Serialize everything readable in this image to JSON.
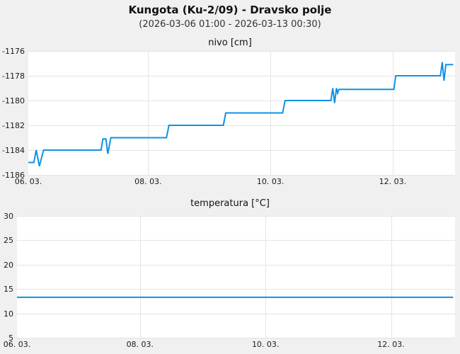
{
  "header": {
    "title": "Kungota (Ku-2/09) - Dravsko polje",
    "subtitle": "(2026-03-06 01:00 - 2026-03-13 00:30)"
  },
  "colors": {
    "page_bg": "#f0f0f0",
    "plot_bg": "#ffffff",
    "grid": "#e4e4e4",
    "line": "#1191e5",
    "tick_text": "#1a1a1a"
  },
  "chart_data": [
    {
      "type": "line",
      "title": "nivo [cm]",
      "xlabel": "",
      "ylabel": "nivo [cm]",
      "x_unit_note": "days since 2026-03-06 00:00",
      "xlim": [
        0.04,
        7.02
      ],
      "ylim": [
        -1186,
        -1176
      ],
      "grid": true,
      "legend": "none",
      "yticks": [
        {
          "v": -1176,
          "label": "-1176"
        },
        {
          "v": -1178,
          "label": "-1178"
        },
        {
          "v": -1180,
          "label": "-1180"
        },
        {
          "v": -1182,
          "label": "-1182"
        },
        {
          "v": -1184,
          "label": "-1184"
        },
        {
          "v": -1186,
          "label": "-1186"
        }
      ],
      "xticks": [
        {
          "t": 0,
          "label": "06. 03."
        },
        {
          "t": 2,
          "label": "08. 03."
        },
        {
          "t": 4,
          "label": "10. 03."
        },
        {
          "t": 6,
          "label": "12. 03."
        }
      ],
      "series": [
        {
          "name": "nivo",
          "color": "#1191e5",
          "width": 2,
          "points": [
            [
              0.04,
              -1185
            ],
            [
              0.13,
              -1185
            ],
            [
              0.17,
              -1184
            ],
            [
              0.22,
              -1185.3
            ],
            [
              0.29,
              -1184
            ],
            [
              1.23,
              -1184
            ],
            [
              1.26,
              -1183.1
            ],
            [
              1.31,
              -1183.1
            ],
            [
              1.34,
              -1184.3
            ],
            [
              1.39,
              -1183
            ],
            [
              2.3,
              -1183
            ],
            [
              2.34,
              -1182
            ],
            [
              3.23,
              -1182
            ],
            [
              3.27,
              -1181
            ],
            [
              4.2,
              -1181
            ],
            [
              4.24,
              -1180
            ],
            [
              4.99,
              -1180
            ],
            [
              5.02,
              -1179
            ],
            [
              5.05,
              -1180.2
            ],
            [
              5.08,
              -1179
            ],
            [
              5.1,
              -1179.4
            ],
            [
              5.12,
              -1179.1
            ],
            [
              6.02,
              -1179.1
            ],
            [
              6.05,
              -1178
            ],
            [
              6.78,
              -1178
            ],
            [
              6.81,
              -1176.9
            ],
            [
              6.84,
              -1178.4
            ],
            [
              6.87,
              -1177.1
            ],
            [
              6.99,
              -1177.1
            ]
          ]
        }
      ]
    },
    {
      "type": "line",
      "title": "temperatura [°C]",
      "xlabel": "",
      "ylabel": "temperatura [°C]",
      "x_unit_note": "days since 2026-03-06 00:00",
      "xlim": [
        0.04,
        7.02
      ],
      "ylim": [
        5,
        30
      ],
      "grid": true,
      "legend": "none",
      "yticks": [
        {
          "v": 30,
          "label": "30"
        },
        {
          "v": 25,
          "label": "25"
        },
        {
          "v": 20,
          "label": "20"
        },
        {
          "v": 15,
          "label": "15"
        },
        {
          "v": 10,
          "label": "10"
        },
        {
          "v": 5,
          "label": "5"
        }
      ],
      "xticks": [
        {
          "t": 0,
          "label": "06. 03."
        },
        {
          "t": 2,
          "label": "08. 03."
        },
        {
          "t": 4,
          "label": "10. 03."
        },
        {
          "t": 6,
          "label": "12. 03."
        }
      ],
      "series": [
        {
          "name": "temperatura",
          "color": "#1191e5",
          "width": 2,
          "points": [
            [
              0.04,
              13.3
            ],
            [
              6.99,
              13.3
            ]
          ]
        }
      ]
    }
  ]
}
